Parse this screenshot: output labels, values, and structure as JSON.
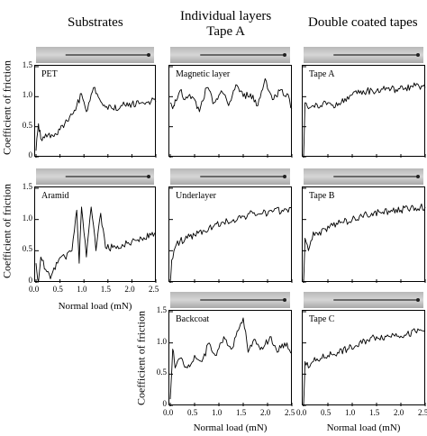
{
  "headers": {
    "substrates": "Substrates",
    "individual_line1": "Individual layers",
    "individual_line2": "Tape A",
    "double": "Double coated tapes"
  },
  "axes": {
    "ylabel": "Coefficient of friction",
    "xlabel": "Normal load (mN)",
    "yticks": [
      "0",
      "0.5",
      "1.0",
      "1.5"
    ],
    "xticks": [
      "0.0",
      "0.5",
      "1.0",
      "1.5",
      "2.0",
      "2.5"
    ]
  },
  "chart_data": [
    {
      "id": "pet",
      "type": "line",
      "title": "PET",
      "xlim": [
        0,
        2.5
      ],
      "ylim": [
        0,
        1.5
      ],
      "x": [
        0.0,
        0.05,
        0.1,
        0.2,
        0.35,
        0.5,
        0.6,
        0.75,
        0.85,
        0.95,
        1.05,
        1.2,
        1.4,
        1.6,
        1.8,
        2.0,
        2.2,
        2.4,
        2.5
      ],
      "y": [
        0.1,
        0.55,
        0.3,
        0.38,
        0.35,
        0.45,
        0.55,
        0.7,
        0.85,
        1.05,
        0.75,
        1.15,
        0.85,
        0.8,
        0.85,
        0.88,
        0.9,
        0.92,
        0.92
      ]
    },
    {
      "id": "aramid",
      "type": "line",
      "title": "Aramid",
      "xlim": [
        0,
        2.5
      ],
      "ylim": [
        0,
        1.5
      ],
      "x": [
        0.0,
        0.05,
        0.1,
        0.2,
        0.3,
        0.45,
        0.6,
        0.75,
        0.85,
        0.9,
        0.95,
        1.05,
        1.15,
        1.25,
        1.35,
        1.45,
        1.6,
        1.8,
        2.0,
        2.2,
        2.4,
        2.5
      ],
      "y": [
        0.3,
        0.0,
        0.4,
        0.2,
        0.05,
        0.3,
        0.4,
        0.5,
        1.15,
        0.3,
        1.2,
        0.4,
        1.2,
        0.5,
        1.1,
        0.55,
        0.55,
        0.6,
        0.65,
        0.7,
        0.75,
        0.78
      ]
    },
    {
      "id": "magnetic",
      "type": "line",
      "title": "Magnetic layer",
      "xlim": [
        0,
        2.5
      ],
      "ylim": [
        0,
        1.5
      ],
      "x": [
        0.0,
        0.05,
        0.1,
        0.2,
        0.3,
        0.45,
        0.6,
        0.75,
        0.9,
        1.05,
        1.2,
        1.35,
        1.5,
        1.65,
        1.8,
        1.95,
        2.1,
        2.25,
        2.4,
        2.5
      ],
      "y": [
        0.9,
        0.8,
        0.95,
        1.1,
        0.95,
        1.0,
        0.75,
        1.15,
        0.9,
        1.1,
        0.85,
        1.2,
        1.0,
        1.05,
        0.85,
        1.3,
        0.95,
        1.1,
        1.05,
        0.8
      ]
    },
    {
      "id": "underlayer",
      "type": "line",
      "title": "Underlayer",
      "xlim": [
        0,
        2.5
      ],
      "ylim": [
        0,
        1.5
      ],
      "x": [
        0.0,
        0.03,
        0.1,
        0.2,
        0.35,
        0.5,
        0.7,
        0.9,
        1.1,
        1.3,
        1.5,
        1.7,
        1.9,
        2.1,
        2.3,
        2.5
      ],
      "y": [
        0.0,
        0.35,
        0.55,
        0.65,
        0.7,
        0.75,
        0.82,
        0.9,
        0.95,
        1.0,
        1.05,
        1.1,
        1.1,
        1.12,
        1.15,
        1.18
      ]
    },
    {
      "id": "backcoat",
      "type": "line",
      "title": "Backcoat",
      "xlim": [
        0,
        2.5
      ],
      "ylim": [
        0,
        1.5
      ],
      "x": [
        0.0,
        0.05,
        0.1,
        0.2,
        0.35,
        0.5,
        0.65,
        0.8,
        0.95,
        1.1,
        1.25,
        1.4,
        1.5,
        1.6,
        1.75,
        1.9,
        2.05,
        2.2,
        2.35,
        2.5
      ],
      "y": [
        0.1,
        0.9,
        0.6,
        0.75,
        0.6,
        0.8,
        0.7,
        1.0,
        0.8,
        1.1,
        0.9,
        1.2,
        1.4,
        0.85,
        1.05,
        0.9,
        1.1,
        0.85,
        1.0,
        0.85
      ]
    },
    {
      "id": "tapeA",
      "type": "line",
      "title": "Tape A",
      "xlim": [
        0,
        2.5
      ],
      "ylim": [
        0,
        1.5
      ],
      "x": [
        0.0,
        0.03,
        0.1,
        0.2,
        0.35,
        0.5,
        0.7,
        0.9,
        1.1,
        1.3,
        1.5,
        1.7,
        1.9,
        2.1,
        2.3,
        2.5
      ],
      "y": [
        0.0,
        0.9,
        0.8,
        0.85,
        0.85,
        0.9,
        0.85,
        1.0,
        1.05,
        1.1,
        1.1,
        1.15,
        1.12,
        1.15,
        1.18,
        1.15
      ]
    },
    {
      "id": "tapeB",
      "type": "line",
      "title": "Tape B",
      "xlim": [
        0,
        2.5
      ],
      "ylim": [
        0,
        1.5
      ],
      "x": [
        0.0,
        0.03,
        0.1,
        0.2,
        0.3,
        0.45,
        0.6,
        0.8,
        1.0,
        1.2,
        1.4,
        1.6,
        1.8,
        2.0,
        2.2,
        2.4,
        2.5
      ],
      "y": [
        0.0,
        0.7,
        0.5,
        0.8,
        0.75,
        0.85,
        0.9,
        0.95,
        1.0,
        1.05,
        1.1,
        1.1,
        1.15,
        1.15,
        1.18,
        1.2,
        1.2
      ]
    },
    {
      "id": "tapeC",
      "type": "line",
      "title": "Tape C",
      "xlim": [
        0,
        2.5
      ],
      "ylim": [
        0,
        1.5
      ],
      "x": [
        0.0,
        0.03,
        0.1,
        0.2,
        0.35,
        0.5,
        0.7,
        0.9,
        1.1,
        1.3,
        1.5,
        1.7,
        1.9,
        2.1,
        2.3,
        2.5
      ],
      "y": [
        0.0,
        0.7,
        0.6,
        0.7,
        0.75,
        0.8,
        0.85,
        0.9,
        0.95,
        1.05,
        1.1,
        1.1,
        1.15,
        1.12,
        1.18,
        1.2
      ]
    }
  ]
}
